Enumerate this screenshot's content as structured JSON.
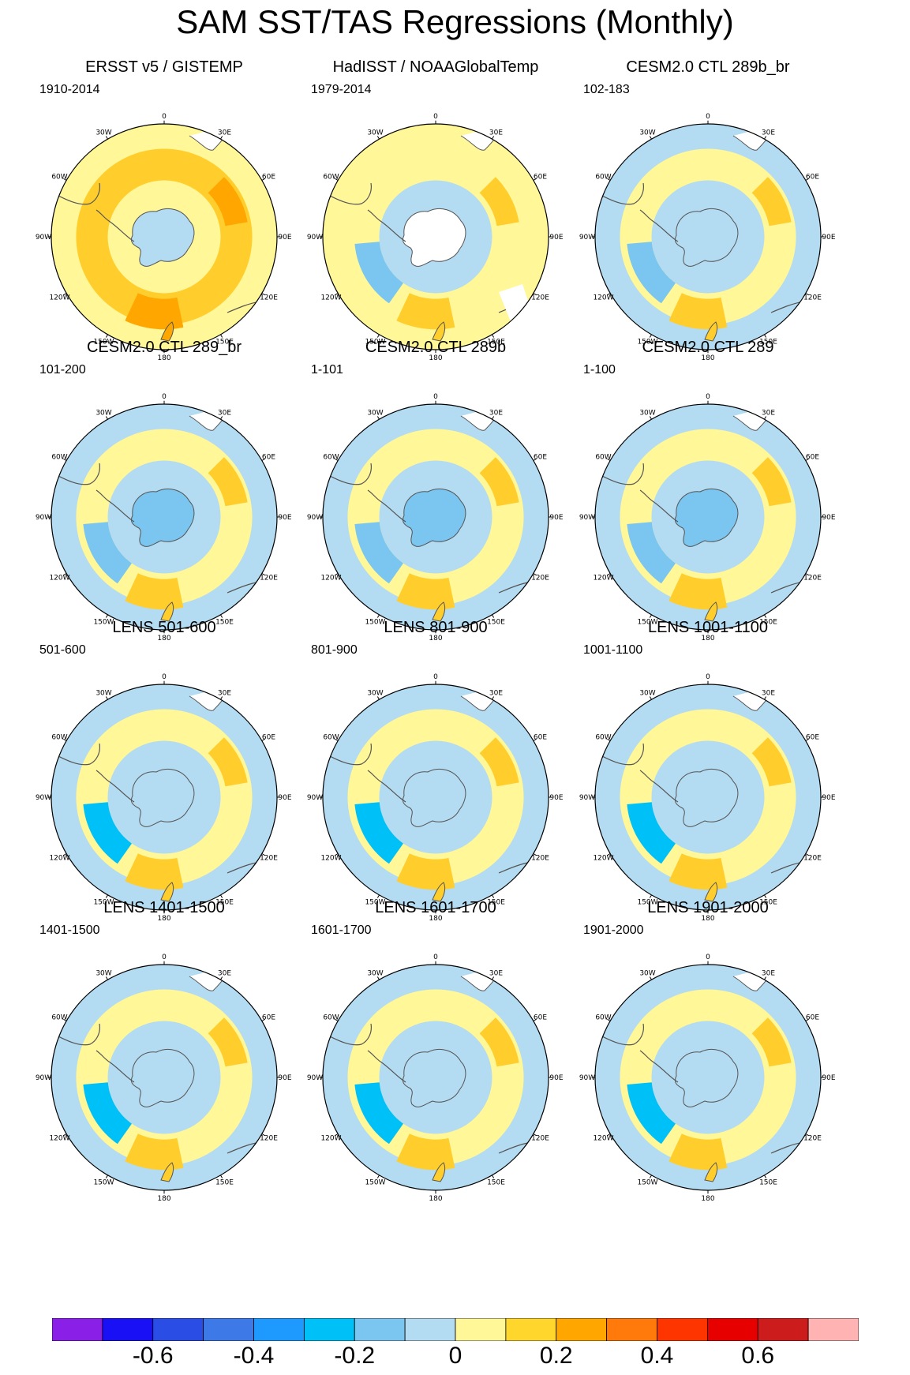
{
  "title": "SAM SST/TAS Regressions (Monthly)",
  "longitude_ticks": [
    "0",
    "30E",
    "60E",
    "90E",
    "120E",
    "150E",
    "180",
    "150W",
    "120W",
    "90W",
    "60W",
    "30W"
  ],
  "panels": [
    {
      "title": "ERSST v5 / GISTEMP",
      "period": "1910-2014",
      "background": "#fff798",
      "ring_inner": "#fff798",
      "ring": "#ffce2c",
      "blobs": [
        {
          "value": 0.4,
          "color": "#ffa600"
        },
        {
          "value": 0.2,
          "color": "#ffce2c"
        }
      ],
      "antarctica": "#b3dbf1",
      "missing": false
    },
    {
      "title": "HadISST / NOAAGlobalTemp",
      "period": "1979-2014",
      "background": "#fff798",
      "ring_inner": "#b3dbf1",
      "ring": "#fff798",
      "blobs": [
        {
          "value": 0.2,
          "color": "#ffce2c"
        },
        {
          "value": -0.1,
          "color": "#7ac6f0"
        }
      ],
      "antarctica": "#ffffff",
      "missing": true
    },
    {
      "title": "CESM2.0 CTL 289b_br",
      "period": "102-183",
      "background": "#b3dbf1",
      "ring_inner": "#b3dbf1",
      "ring": "#fff798",
      "blobs": [
        {
          "value": 0.2,
          "color": "#ffce2c"
        },
        {
          "value": -0.1,
          "color": "#7ac6f0"
        }
      ],
      "antarctica": "#b3dbf1",
      "missing": false
    },
    {
      "title": "CESM2.0 CTL 289_br",
      "period": "101-200",
      "background": "#b3dbf1",
      "ring_inner": "#b3dbf1",
      "ring": "#fff798",
      "blobs": [
        {
          "value": 0.2,
          "color": "#ffce2c"
        },
        {
          "value": -0.1,
          "color": "#7ac6f0"
        }
      ],
      "antarctica": "#7ac6f0",
      "missing": false
    },
    {
      "title": "CESM2.0 CTL 289b",
      "period": "1-101",
      "background": "#b3dbf1",
      "ring_inner": "#b3dbf1",
      "ring": "#fff798",
      "blobs": [
        {
          "value": 0.2,
          "color": "#ffce2c"
        },
        {
          "value": -0.1,
          "color": "#7ac6f0"
        }
      ],
      "antarctica": "#7ac6f0",
      "missing": false
    },
    {
      "title": "CESM2.0 CTL 289",
      "period": "1-100",
      "background": "#b3dbf1",
      "ring_inner": "#b3dbf1",
      "ring": "#fff798",
      "blobs": [
        {
          "value": 0.2,
          "color": "#ffce2c"
        },
        {
          "value": -0.1,
          "color": "#7ac6f0"
        }
      ],
      "antarctica": "#7ac6f0",
      "missing": false
    },
    {
      "title": "LENS 501-600",
      "period": "501-600",
      "background": "#b3dbf1",
      "ring_inner": "#b3dbf1",
      "ring": "#fff798",
      "blobs": [
        {
          "value": 0.2,
          "color": "#ffce2c"
        },
        {
          "value": -0.2,
          "color": "#00c0f8"
        }
      ],
      "antarctica": "#b3dbf1",
      "missing": false
    },
    {
      "title": "LENS 801-900",
      "period": "801-900",
      "background": "#b3dbf1",
      "ring_inner": "#b3dbf1",
      "ring": "#fff798",
      "blobs": [
        {
          "value": 0.2,
          "color": "#ffce2c"
        },
        {
          "value": -0.2,
          "color": "#00c0f8"
        }
      ],
      "antarctica": "#b3dbf1",
      "missing": false
    },
    {
      "title": "LENS 1001-1100",
      "period": "1001-1100",
      "background": "#b3dbf1",
      "ring_inner": "#b3dbf1",
      "ring": "#fff798",
      "blobs": [
        {
          "value": 0.2,
          "color": "#ffce2c"
        },
        {
          "value": -0.2,
          "color": "#00c0f8"
        }
      ],
      "antarctica": "#b3dbf1",
      "missing": false
    },
    {
      "title": "LENS 1401-1500",
      "period": "1401-1500",
      "background": "#b3dbf1",
      "ring_inner": "#b3dbf1",
      "ring": "#fff798",
      "blobs": [
        {
          "value": 0.2,
          "color": "#ffce2c"
        },
        {
          "value": -0.2,
          "color": "#00c0f8"
        }
      ],
      "antarctica": "#b3dbf1",
      "missing": false
    },
    {
      "title": "LENS 1601-1700",
      "period": "1601-1700",
      "background": "#b3dbf1",
      "ring_inner": "#b3dbf1",
      "ring": "#fff798",
      "blobs": [
        {
          "value": 0.2,
          "color": "#ffce2c"
        },
        {
          "value": -0.2,
          "color": "#00c0f8"
        }
      ],
      "antarctica": "#b3dbf1",
      "missing": false
    },
    {
      "title": "LENS 1901-2000",
      "period": "1901-2000",
      "background": "#b3dbf1",
      "ring_inner": "#b3dbf1",
      "ring": "#fff798",
      "blobs": [
        {
          "value": 0.2,
          "color": "#ffce2c"
        },
        {
          "value": -0.2,
          "color": "#00c0f8"
        }
      ],
      "antarctica": "#b3dbf1",
      "missing": false
    }
  ],
  "colorbar": {
    "colors": [
      "#8a20e8",
      "#1a10f5",
      "#2a4de6",
      "#3d7ae8",
      "#1e9aff",
      "#00c0f8",
      "#7ac6f0",
      "#b3dbf1",
      "#fff798",
      "#ffd62b",
      "#ffa600",
      "#ff7a0a",
      "#ff3500",
      "#e60000",
      "#cc1c1c",
      "#ffb3b3"
    ],
    "labels": [
      "-0.6",
      "-0.4",
      "-0.2",
      "0",
      "0.2",
      "0.4",
      "0.6"
    ],
    "label_values": [
      -0.6,
      -0.4,
      -0.2,
      0,
      0.2,
      0.4,
      0.6
    ]
  }
}
